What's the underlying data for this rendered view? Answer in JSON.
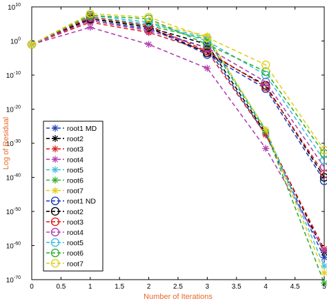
{
  "chart_data": {
    "type": "line",
    "title": "",
    "xlabel": "Number of Iterations",
    "ylabel": "Log of Residual",
    "label_color": "#e8682a",
    "x": [
      0,
      1,
      2,
      3,
      4,
      5
    ],
    "xlim": [
      0,
      5
    ],
    "xticks": [
      "0",
      "0.5",
      "1",
      "1.5",
      "2",
      "2.5",
      "3",
      "3.5",
      "4",
      "4.5",
      "5"
    ],
    "y_scale": "log",
    "ylim_exponent": [
      -70,
      10
    ],
    "yticks_base": "10",
    "yticks_exponent": [
      "10",
      "0",
      "-10",
      "-20",
      "-30",
      "-40",
      "-50",
      "-60",
      "-70"
    ],
    "grid": false,
    "legend_position": "lower-left",
    "series": [
      {
        "name": "root1 MD",
        "marker": "star",
        "color": "#1f3fbf",
        "log10_values": [
          -1,
          6,
          3.5,
          -2,
          -27.5,
          -63.5
        ]
      },
      {
        "name": "root2",
        "marker": "star",
        "color": "#000000",
        "log10_values": [
          -1,
          6.5,
          4,
          -1,
          -27,
          -62
        ]
      },
      {
        "name": "root3",
        "marker": "star",
        "color": "#e02020",
        "log10_values": [
          -1,
          5.5,
          2.5,
          -3,
          -27.5,
          -61
        ]
      },
      {
        "name": "root4",
        "marker": "star",
        "color": "#b040b0",
        "log10_values": [
          -1,
          4,
          -1,
          -8,
          -31.5,
          -61.5
        ]
      },
      {
        "name": "root5",
        "marker": "star",
        "color": "#40c0e0",
        "log10_values": [
          -1,
          7,
          5,
          1,
          -26,
          -66
        ]
      },
      {
        "name": "root6",
        "marker": "star",
        "color": "#30b030",
        "log10_values": [
          -1,
          6.5,
          4.5,
          0.5,
          -26.5,
          -71
        ]
      },
      {
        "name": "root7",
        "marker": "star",
        "color": "#e0d020",
        "log10_values": [
          -1,
          7.5,
          5.5,
          1.5,
          -26,
          -68
        ]
      },
      {
        "name": "root1 ND",
        "marker": "circle",
        "color": "#1f3fbf",
        "log10_values": [
          -1,
          6.5,
          4,
          -4,
          -14,
          -41
        ]
      },
      {
        "name": "root2",
        "marker": "circle",
        "color": "#000000",
        "log10_values": [
          -1,
          6.5,
          4,
          -3.5,
          -13,
          -40
        ]
      },
      {
        "name": "root3",
        "marker": "circle",
        "color": "#e02020",
        "log10_values": [
          -1,
          7,
          4.5,
          -3,
          -13.5,
          -39
        ]
      },
      {
        "name": "root4",
        "marker": "circle",
        "color": "#b040b0",
        "log10_values": [
          -1,
          6,
          3,
          -2,
          -12,
          -37
        ]
      },
      {
        "name": "root5",
        "marker": "circle",
        "color": "#40c0e0",
        "log10_values": [
          -1,
          7.5,
          5.5,
          0,
          -10,
          -35
        ]
      },
      {
        "name": "root6",
        "marker": "circle",
        "color": "#30b030",
        "log10_values": [
          -1,
          7.5,
          6.5,
          -1,
          -9,
          -33
        ]
      },
      {
        "name": "root7",
        "marker": "circle",
        "color": "#e0d020",
        "log10_values": [
          -1,
          8,
          7,
          1,
          -7,
          -32
        ]
      }
    ]
  }
}
